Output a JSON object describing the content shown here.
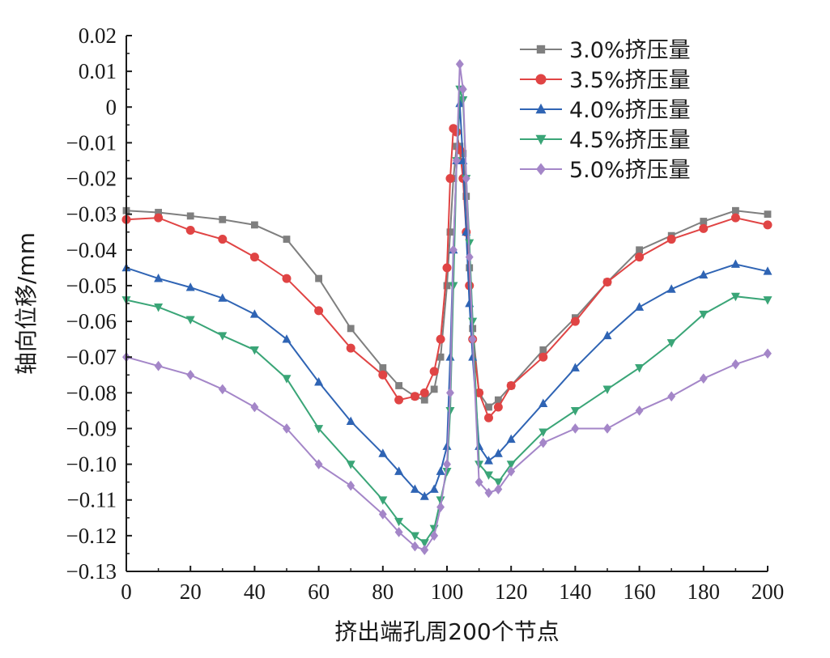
{
  "chart_data": {
    "type": "line",
    "title": "",
    "xlabel": "挤出端孔周200个节点",
    "ylabel": "轴向位移/mm",
    "xlim": [
      0,
      200
    ],
    "ylim": [
      -0.13,
      0.02
    ],
    "xticks": [
      0,
      20,
      40,
      60,
      80,
      100,
      120,
      140,
      160,
      180,
      200
    ],
    "xtick_labels": [
      "0",
      "20",
      "40",
      "60",
      "80",
      "100",
      "120",
      "140",
      "160",
      "180",
      "200"
    ],
    "yticks": [
      0.02,
      0.01,
      0,
      -0.01,
      -0.02,
      -0.03,
      -0.04,
      -0.05,
      -0.06,
      -0.07,
      -0.08,
      -0.09,
      -0.1,
      -0.11,
      -0.12,
      -0.13
    ],
    "ytick_labels": [
      "0.02",
      "0.01",
      "0",
      "−0.01",
      "−0.02",
      "−0.03",
      "−0.04",
      "−0.05",
      "−0.06",
      "−0.07",
      "−0.08",
      "−0.09",
      "−0.10",
      "−0.11",
      "−0.12",
      "−0.13"
    ],
    "grid": false,
    "legend_position": "top-right",
    "x": [
      0,
      10,
      20,
      30,
      40,
      50,
      60,
      70,
      80,
      85,
      90,
      93,
      96,
      98,
      100,
      101,
      102,
      103,
      104,
      105,
      106,
      107,
      108,
      110,
      113,
      116,
      120,
      130,
      140,
      150,
      160,
      170,
      180,
      190,
      200
    ],
    "series": [
      {
        "name": "3.0%挤压量",
        "marker": "square",
        "color": "#7f7f7f",
        "values": [
          -0.029,
          -0.0295,
          -0.0305,
          -0.0315,
          -0.033,
          -0.037,
          -0.048,
          -0.062,
          -0.073,
          -0.078,
          -0.081,
          -0.082,
          -0.079,
          -0.07,
          -0.05,
          -0.035,
          -0.02,
          -0.011,
          -0.011,
          -0.013,
          -0.025,
          -0.045,
          -0.062,
          -0.08,
          -0.084,
          -0.082,
          -0.078,
          -0.068,
          -0.059,
          -0.049,
          -0.04,
          -0.036,
          -0.032,
          -0.029,
          -0.03
        ]
      },
      {
        "name": "3.5%挤压量",
        "marker": "circle",
        "color": "#e04444",
        "values": [
          -0.0315,
          -0.031,
          -0.0345,
          -0.037,
          -0.042,
          -0.048,
          -0.057,
          -0.0675,
          -0.075,
          -0.082,
          -0.081,
          -0.08,
          -0.074,
          -0.065,
          -0.045,
          -0.02,
          -0.006,
          -0.007,
          -0.012,
          -0.02,
          -0.035,
          -0.05,
          -0.065,
          -0.08,
          -0.087,
          -0.084,
          -0.078,
          -0.07,
          -0.06,
          -0.049,
          -0.042,
          -0.037,
          -0.034,
          -0.031,
          -0.033
        ]
      },
      {
        "name": "4.0%挤压量",
        "marker": "triangle-up",
        "color": "#2f64b4",
        "values": [
          -0.045,
          -0.048,
          -0.0505,
          -0.0535,
          -0.058,
          -0.065,
          -0.077,
          -0.088,
          -0.097,
          -0.102,
          -0.107,
          -0.109,
          -0.107,
          -0.102,
          -0.095,
          -0.07,
          -0.04,
          -0.015,
          0.001,
          -0.015,
          -0.035,
          -0.055,
          -0.07,
          -0.095,
          -0.099,
          -0.097,
          -0.093,
          -0.083,
          -0.073,
          -0.064,
          -0.056,
          -0.051,
          -0.047,
          -0.044,
          -0.046
        ]
      },
      {
        "name": "4.5%挤压量",
        "marker": "triangle-down",
        "color": "#3aa577",
        "values": [
          -0.054,
          -0.056,
          -0.0595,
          -0.064,
          -0.068,
          -0.076,
          -0.09,
          -0.1,
          -0.11,
          -0.116,
          -0.12,
          -0.122,
          -0.118,
          -0.11,
          -0.102,
          -0.085,
          -0.05,
          -0.015,
          0.005,
          0.002,
          -0.02,
          -0.038,
          -0.06,
          -0.1,
          -0.103,
          -0.105,
          -0.1,
          -0.091,
          -0.085,
          -0.079,
          -0.073,
          -0.066,
          -0.058,
          -0.053,
          -0.054
        ]
      },
      {
        "name": "5.0%挤压量",
        "marker": "diamond",
        "color": "#a486c8",
        "values": [
          -0.07,
          -0.0725,
          -0.075,
          -0.079,
          -0.084,
          -0.09,
          -0.1,
          -0.106,
          -0.114,
          -0.119,
          -0.123,
          -0.124,
          -0.12,
          -0.112,
          -0.1,
          -0.08,
          -0.04,
          -0.015,
          0.012,
          0.005,
          -0.02,
          -0.042,
          -0.065,
          -0.105,
          -0.108,
          -0.107,
          -0.102,
          -0.094,
          -0.09,
          -0.09,
          -0.085,
          -0.081,
          -0.076,
          -0.072,
          -0.069
        ]
      }
    ]
  }
}
